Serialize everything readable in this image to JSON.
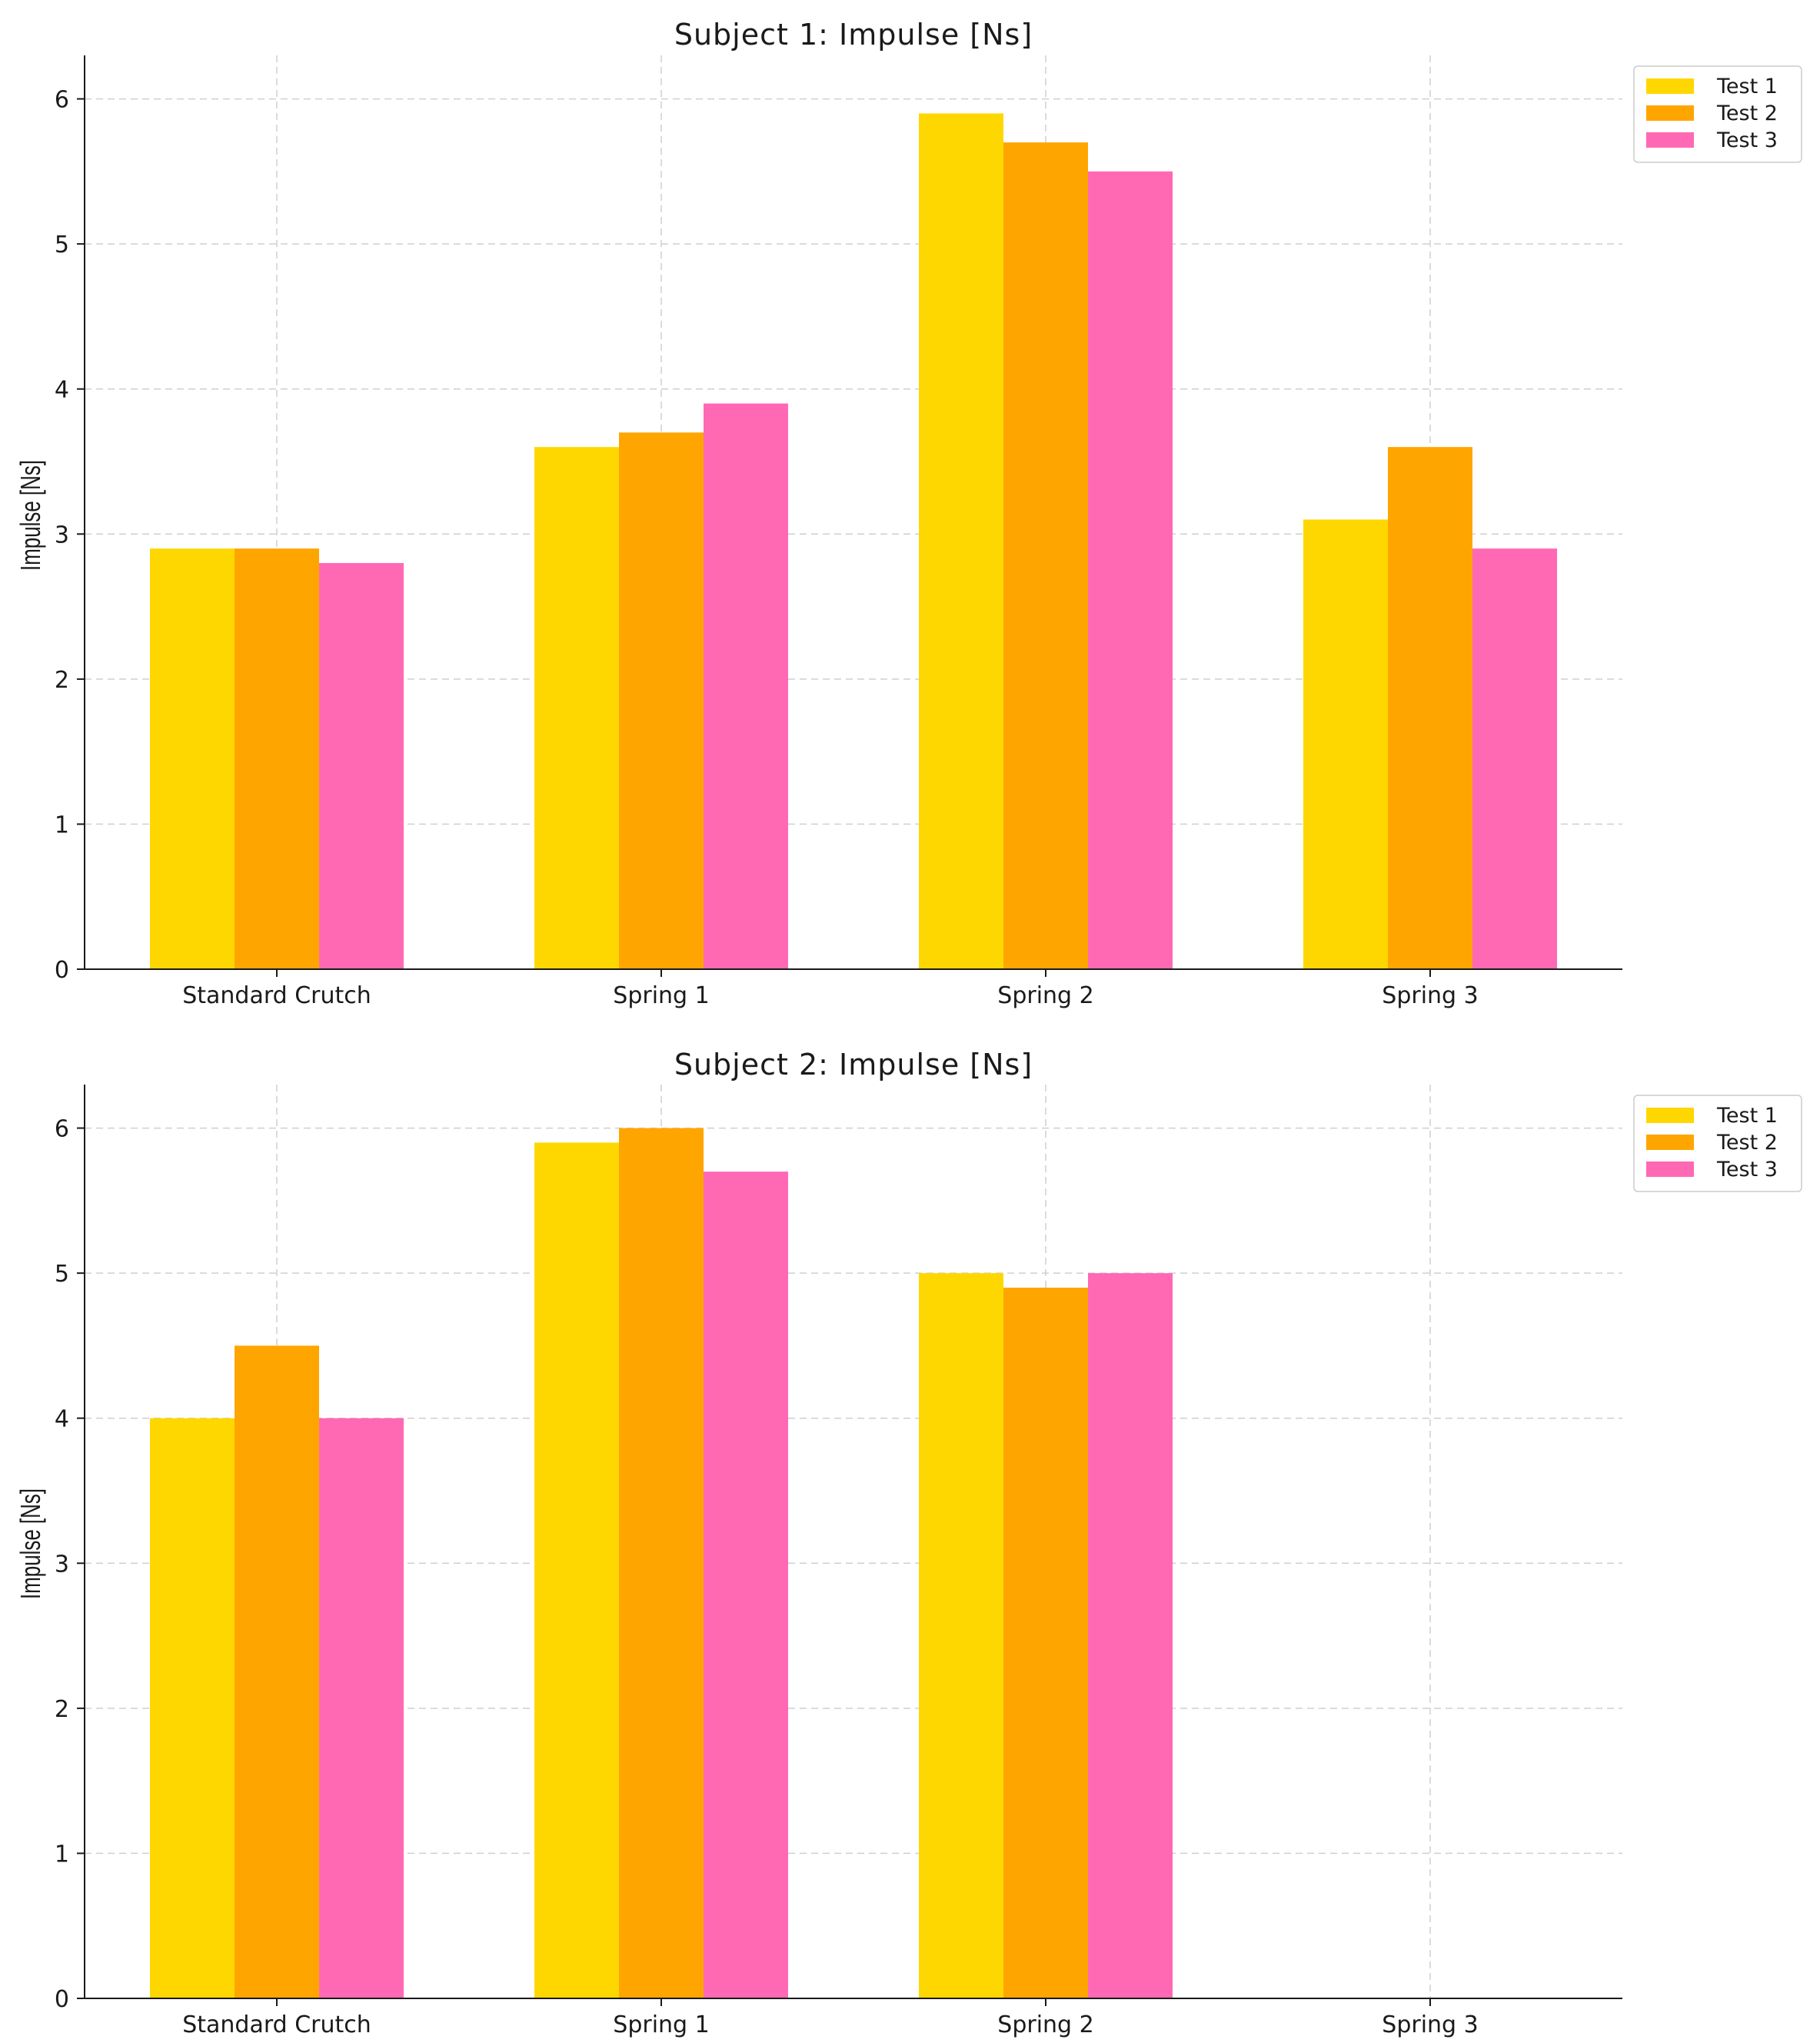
{
  "chart_data": [
    {
      "type": "bar",
      "title": "Subject 1: Impulse [Ns]",
      "xlabel": "",
      "ylabel": "Impulse [Ns]",
      "categories": [
        "Standard Crutch",
        "Spring 1",
        "Spring 2",
        "Spring 3"
      ],
      "series": [
        {
          "name": "Test 1",
          "color": "#FFD700",
          "values": [
            2.9,
            3.6,
            5.9,
            3.1
          ]
        },
        {
          "name": "Test 2",
          "color": "#FFA500",
          "values": [
            2.9,
            3.7,
            5.7,
            3.6
          ]
        },
        {
          "name": "Test 3",
          "color": "#FF69B4",
          "values": [
            2.8,
            3.9,
            5.5,
            2.9
          ]
        }
      ],
      "yticks": [
        0,
        1,
        2,
        3,
        4,
        5,
        6
      ],
      "ylim": [
        0,
        6.3
      ],
      "grid": true,
      "legend": "top-right"
    },
    {
      "type": "bar",
      "title": "Subject 2: Impulse [Ns]",
      "xlabel": "",
      "ylabel": "Impulse [Ns]",
      "categories": [
        "Standard Crutch",
        "Spring 1",
        "Spring 2",
        "Spring 3"
      ],
      "series": [
        {
          "name": "Test 1",
          "color": "#FFD700",
          "values": [
            4.0,
            5.9,
            5.0,
            null
          ]
        },
        {
          "name": "Test 2",
          "color": "#FFA500",
          "values": [
            4.5,
            6.0,
            4.9,
            null
          ]
        },
        {
          "name": "Test 3",
          "color": "#FF69B4",
          "values": [
            4.0,
            5.7,
            5.0,
            null
          ]
        }
      ],
      "yticks": [
        0,
        1,
        2,
        3,
        4,
        5,
        6
      ],
      "ylim": [
        0,
        6.3
      ],
      "grid": true,
      "legend": "top-right"
    }
  ]
}
